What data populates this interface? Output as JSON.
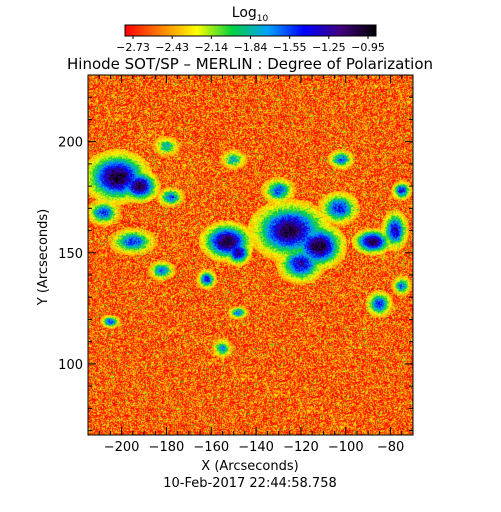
{
  "chart_data": {
    "type": "heatmap",
    "title": "Hinode SOT/SP – MERLIN : Degree of Polarization",
    "xlabel": "X (Arcseconds)",
    "ylabel": "Y (Arcseconds)",
    "timestamp": "10-Feb-2017 22:44:58.758",
    "colorbar": {
      "label_base": "Log",
      "label_sub": "10",
      "tick_labels": [
        "−2.73",
        "−2.43",
        "−2.14",
        "−1.84",
        "−1.55",
        "−1.25",
        "−0.95"
      ],
      "range": [
        -2.73,
        -0.95
      ],
      "colormap": [
        "#ff0000",
        "#ff8000",
        "#ffff00",
        "#00d040",
        "#00a0ff",
        "#0000ff",
        "#400080",
        "#000000"
      ]
    },
    "xlim": [
      -215,
      -70
    ],
    "ylim": [
      68,
      230
    ],
    "xticks": [
      -200,
      -180,
      -160,
      -140,
      -120,
      -100,
      -80
    ],
    "xtick_labels": [
      "−200",
      "−180",
      "−160",
      "−140",
      "−120",
      "−100",
      "−80"
    ],
    "yticks": [
      100,
      150,
      200
    ],
    "ytick_labels": [
      "100",
      "150",
      "200"
    ],
    "background_value": -2.55,
    "high_polarization_regions": [
      {
        "x": -202,
        "y": 184,
        "rx": 10,
        "ry": 8,
        "peak": -1.0
      },
      {
        "x": -192,
        "y": 180,
        "rx": 6,
        "ry": 5,
        "peak": -1.05
      },
      {
        "x": -208,
        "y": 168,
        "rx": 5,
        "ry": 4,
        "peak": -1.5
      },
      {
        "x": -195,
        "y": 155,
        "rx": 7,
        "ry": 4,
        "peak": -1.5
      },
      {
        "x": -182,
        "y": 142,
        "rx": 4,
        "ry": 3,
        "peak": -1.6
      },
      {
        "x": -178,
        "y": 175,
        "rx": 4,
        "ry": 3,
        "peak": -1.6
      },
      {
        "x": -153,
        "y": 155,
        "rx": 8,
        "ry": 6,
        "peak": -1.0
      },
      {
        "x": -148,
        "y": 150,
        "rx": 4,
        "ry": 4,
        "peak": -1.2
      },
      {
        "x": -125,
        "y": 160,
        "rx": 12,
        "ry": 9,
        "peak": -1.05
      },
      {
        "x": -112,
        "y": 153,
        "rx": 8,
        "ry": 7,
        "peak": -1.0
      },
      {
        "x": -120,
        "y": 145,
        "rx": 7,
        "ry": 6,
        "peak": -1.3
      },
      {
        "x": -88,
        "y": 155,
        "rx": 6,
        "ry": 4,
        "peak": -1.05
      },
      {
        "x": -78,
        "y": 160,
        "rx": 4,
        "ry": 6,
        "peak": -1.3
      },
      {
        "x": -103,
        "y": 170,
        "rx": 6,
        "ry": 5,
        "peak": -1.4
      },
      {
        "x": -130,
        "y": 178,
        "rx": 5,
        "ry": 4,
        "peak": -1.55
      },
      {
        "x": -102,
        "y": 192,
        "rx": 4,
        "ry": 3,
        "peak": -1.6
      },
      {
        "x": -75,
        "y": 178,
        "rx": 3,
        "ry": 3,
        "peak": -1.4
      },
      {
        "x": -85,
        "y": 127,
        "rx": 4,
        "ry": 4,
        "peak": -1.45
      },
      {
        "x": -75,
        "y": 135,
        "rx": 3,
        "ry": 3,
        "peak": -1.6
      },
      {
        "x": -162,
        "y": 138,
        "rx": 3,
        "ry": 3,
        "peak": -1.45
      },
      {
        "x": -148,
        "y": 123,
        "rx": 3,
        "ry": 2,
        "peak": -1.6
      },
      {
        "x": -155,
        "y": 107,
        "rx": 3,
        "ry": 3,
        "peak": -1.7
      },
      {
        "x": -205,
        "y": 119,
        "rx": 3,
        "ry": 2,
        "peak": -1.5
      },
      {
        "x": -180,
        "y": 198,
        "rx": 4,
        "ry": 3,
        "peak": -1.8
      },
      {
        "x": -150,
        "y": 192,
        "rx": 4,
        "ry": 3,
        "peak": -1.8
      }
    ]
  }
}
